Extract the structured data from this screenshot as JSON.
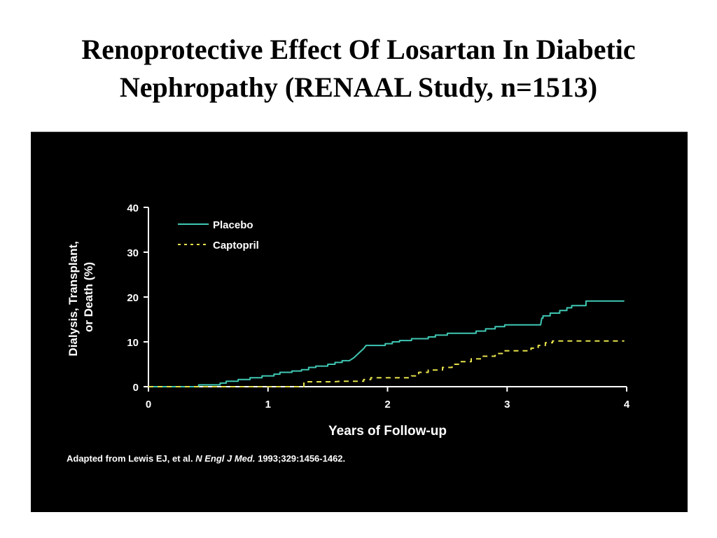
{
  "slide": {
    "title_line1": "Renoprotective Effect Of Losartan In Diabetic",
    "title_line2": "Nephropathy (RENAAL Study, n=1513)"
  },
  "caption": {
    "prefix": "Adapted from Lewis EJ, et al.",
    "journal": "N Engl J Med.",
    "suffix": "1993;329:1456-1462."
  },
  "colors": {
    "placebo": "#3fc7b3",
    "captopril": "#e6e14a",
    "axis": "#ffffff",
    "panel": "#000000"
  },
  "chart_data": {
    "type": "line",
    "title": "",
    "xlabel": "Years of Follow-up",
    "ylabel_line1": "Dialysis, Transplant,",
    "ylabel_line2": "or Death (%)",
    "xlim": [
      0,
      4
    ],
    "ylim": [
      0,
      40
    ],
    "x_ticks": [
      0,
      1,
      2,
      3,
      4
    ],
    "x_tick_labels": [
      "0",
      "1",
      "2",
      "3",
      "4"
    ],
    "y_ticks": [
      0,
      10,
      20,
      30,
      40
    ],
    "y_tick_labels": [
      "0",
      "10",
      "20",
      "30",
      "40"
    ],
    "grid": false,
    "legend_position": "top-left",
    "series": [
      {
        "name": "Placebo",
        "style": "solid",
        "points": [
          [
            0,
            0
          ],
          [
            0.42,
            0
          ],
          [
            0.42,
            0.4
          ],
          [
            0.6,
            0.4
          ],
          [
            0.6,
            0.8
          ],
          [
            0.65,
            0.8
          ],
          [
            0.65,
            1.2
          ],
          [
            0.75,
            1.2
          ],
          [
            0.75,
            1.6
          ],
          [
            0.85,
            1.6
          ],
          [
            0.85,
            2.0
          ],
          [
            0.95,
            2.0
          ],
          [
            0.95,
            2.4
          ],
          [
            1.05,
            2.4
          ],
          [
            1.05,
            2.8
          ],
          [
            1.1,
            2.8
          ],
          [
            1.1,
            3.2
          ],
          [
            1.2,
            3.2
          ],
          [
            1.2,
            3.5
          ],
          [
            1.28,
            3.5
          ],
          [
            1.28,
            3.8
          ],
          [
            1.34,
            3.8
          ],
          [
            1.34,
            4.3
          ],
          [
            1.4,
            4.3
          ],
          [
            1.4,
            4.6
          ],
          [
            1.5,
            4.6
          ],
          [
            1.5,
            5.0
          ],
          [
            1.56,
            5.0
          ],
          [
            1.56,
            5.4
          ],
          [
            1.62,
            5.4
          ],
          [
            1.62,
            5.8
          ],
          [
            1.68,
            5.8
          ],
          [
            1.72,
            6.5
          ],
          [
            1.76,
            7.5
          ],
          [
            1.8,
            8.5
          ],
          [
            1.82,
            9.2
          ],
          [
            1.98,
            9.2
          ],
          [
            1.98,
            9.6
          ],
          [
            2.04,
            9.6
          ],
          [
            2.04,
            10.0
          ],
          [
            2.1,
            10.0
          ],
          [
            2.1,
            10.3
          ],
          [
            2.2,
            10.3
          ],
          [
            2.2,
            10.7
          ],
          [
            2.34,
            10.7
          ],
          [
            2.34,
            11.1
          ],
          [
            2.4,
            11.1
          ],
          [
            2.4,
            11.5
          ],
          [
            2.5,
            11.5
          ],
          [
            2.5,
            11.9
          ],
          [
            2.74,
            11.9
          ],
          [
            2.74,
            12.4
          ],
          [
            2.82,
            12.4
          ],
          [
            2.82,
            12.9
          ],
          [
            2.9,
            12.9
          ],
          [
            2.9,
            13.4
          ],
          [
            2.98,
            13.4
          ],
          [
            2.98,
            13.8
          ],
          [
            3.28,
            13.8
          ],
          [
            3.29,
            15.3
          ],
          [
            3.3,
            15.3
          ],
          [
            3.3,
            15.8
          ],
          [
            3.36,
            15.8
          ],
          [
            3.36,
            16.4
          ],
          [
            3.44,
            16.4
          ],
          [
            3.44,
            17.0
          ],
          [
            3.5,
            17.0
          ],
          [
            3.5,
            17.6
          ],
          [
            3.54,
            17.6
          ],
          [
            3.54,
            18.1
          ],
          [
            3.66,
            18.1
          ],
          [
            3.66,
            19.1
          ],
          [
            3.98,
            19.1
          ]
        ]
      },
      {
        "name": "Captopril",
        "style": "dashed",
        "points": [
          [
            0,
            0
          ],
          [
            1.3,
            0
          ],
          [
            1.3,
            1.1
          ],
          [
            1.55,
            1.1
          ],
          [
            1.6,
            1.2
          ],
          [
            1.8,
            1.2
          ],
          [
            1.8,
            1.6
          ],
          [
            1.86,
            1.6
          ],
          [
            1.86,
            2.0
          ],
          [
            2.2,
            2.0
          ],
          [
            2.2,
            2.4
          ],
          [
            2.26,
            2.4
          ],
          [
            2.26,
            3.2
          ],
          [
            2.34,
            3.2
          ],
          [
            2.34,
            3.7
          ],
          [
            2.46,
            3.7
          ],
          [
            2.46,
            4.3
          ],
          [
            2.54,
            4.3
          ],
          [
            2.54,
            5.0
          ],
          [
            2.6,
            5.0
          ],
          [
            2.6,
            5.6
          ],
          [
            2.7,
            5.6
          ],
          [
            2.7,
            6.2
          ],
          [
            2.8,
            6.2
          ],
          [
            2.8,
            6.8
          ],
          [
            2.9,
            6.8
          ],
          [
            2.9,
            7.4
          ],
          [
            2.96,
            7.4
          ],
          [
            2.96,
            8.0
          ],
          [
            3.2,
            8.0
          ],
          [
            3.2,
            8.6
          ],
          [
            3.26,
            8.6
          ],
          [
            3.26,
            9.2
          ],
          [
            3.32,
            9.2
          ],
          [
            3.32,
            9.8
          ],
          [
            3.38,
            9.8
          ],
          [
            3.38,
            10.2
          ],
          [
            3.98,
            10.2
          ]
        ]
      }
    ]
  }
}
